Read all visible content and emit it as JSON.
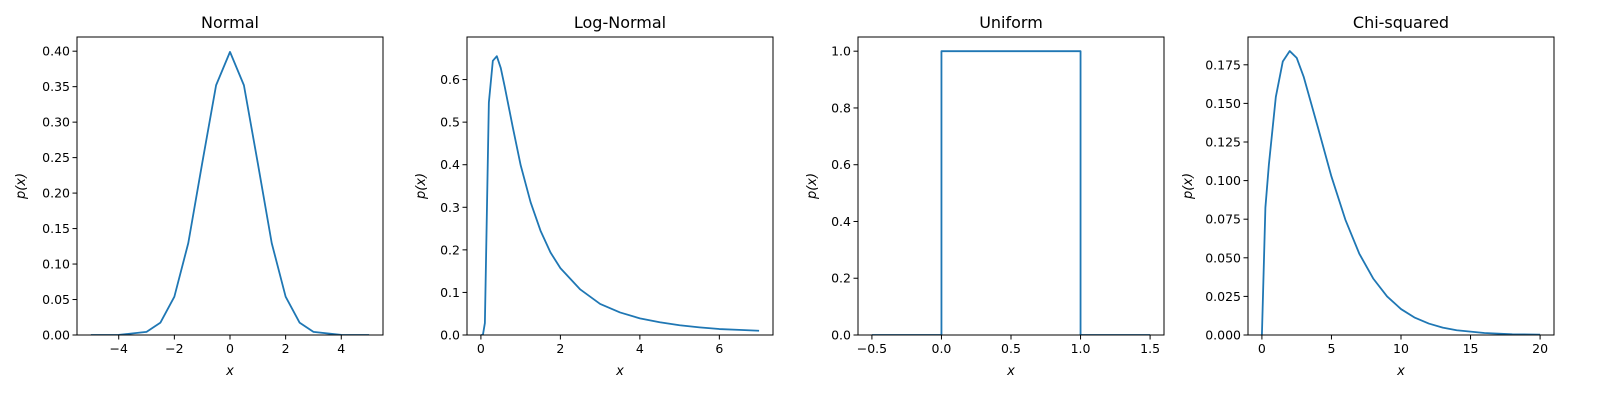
{
  "chart_data": [
    {
      "type": "line",
      "title": "Normal",
      "xlabel": "x",
      "ylabel": "p(x)",
      "xlim": [
        -5.5,
        5.5
      ],
      "ylim": [
        0,
        0.42
      ],
      "xticks": [
        -4,
        -2,
        0,
        2,
        4
      ],
      "xtick_labels": [
        "−4",
        "−2",
        "0",
        "2",
        "4"
      ],
      "yticks": [
        0,
        0.05,
        0.1,
        0.15,
        0.2,
        0.25,
        0.3,
        0.35,
        0.4
      ],
      "ytick_labels": [
        "0.00",
        "0.05",
        "0.10",
        "0.15",
        "0.20",
        "0.25",
        "0.30",
        "0.35",
        "0.40"
      ],
      "series": [
        {
          "color": "#1f77b4",
          "x": [
            -5,
            -4,
            -3,
            -2.5,
            -2,
            -1.5,
            -1,
            -0.5,
            0,
            0.5,
            1,
            1.5,
            2,
            2.5,
            3,
            4,
            5
          ],
          "y": [
            0.0,
            0.0001,
            0.0044,
            0.0175,
            0.054,
            0.1295,
            0.242,
            0.352,
            0.399,
            0.352,
            0.242,
            0.1295,
            0.054,
            0.0175,
            0.0044,
            0.0001,
            0.0
          ]
        }
      ]
    },
    {
      "type": "line",
      "title": "Log-Normal",
      "xlabel": "x",
      "ylabel": "p(x)",
      "xlim": [
        -0.35,
        7.35
      ],
      "ylim": [
        0,
        0.7
      ],
      "xticks": [
        0,
        2,
        4,
        6
      ],
      "xtick_labels": [
        "0",
        "2",
        "4",
        "6"
      ],
      "yticks": [
        0,
        0.1,
        0.2,
        0.3,
        0.4,
        0.5,
        0.6
      ],
      "ytick_labels": [
        "0.0",
        "0.1",
        "0.2",
        "0.3",
        "0.4",
        "0.5",
        "0.6"
      ],
      "series": [
        {
          "color": "#1f77b4",
          "x": [
            0,
            0.05,
            0.1,
            0.2,
            0.3,
            0.4,
            0.5,
            0.6,
            0.8,
            1.0,
            1.25,
            1.5,
            1.75,
            2.0,
            2.5,
            3.0,
            3.5,
            4.0,
            4.5,
            5.0,
            5.5,
            6.0,
            6.5,
            7.0
          ],
          "y": [
            0.0,
            0.0,
            0.028,
            0.546,
            0.644,
            0.655,
            0.627,
            0.583,
            0.489,
            0.399,
            0.312,
            0.245,
            0.194,
            0.157,
            0.107,
            0.073,
            0.053,
            0.039,
            0.03,
            0.023,
            0.018,
            0.014,
            0.012,
            0.01
          ]
        }
      ]
    },
    {
      "type": "line",
      "title": "Uniform",
      "xlabel": "x",
      "ylabel": "p(x)",
      "xlim": [
        -0.6,
        1.6
      ],
      "ylim": [
        0,
        1.05
      ],
      "xticks": [
        -0.5,
        0,
        0.5,
        1,
        1.5
      ],
      "xtick_labels": [
        "−0.5",
        "0.0",
        "0.5",
        "1.0",
        "1.5"
      ],
      "yticks": [
        0,
        0.2,
        0.4,
        0.6,
        0.8,
        1.0
      ],
      "ytick_labels": [
        "0.0",
        "0.2",
        "0.4",
        "0.6",
        "0.8",
        "1.0"
      ],
      "series": [
        {
          "color": "#1f77b4",
          "x": [
            -0.5,
            0,
            0,
            1,
            1,
            1.5
          ],
          "y": [
            0,
            0,
            1,
            1,
            0,
            0
          ]
        }
      ]
    },
    {
      "type": "line",
      "title": "Chi-squared",
      "xlabel": "x",
      "ylabel": "p(x)",
      "xlim": [
        -1,
        21
      ],
      "ylim": [
        0,
        0.193
      ],
      "xticks": [
        0,
        5,
        10,
        15,
        20
      ],
      "xtick_labels": [
        "0",
        "5",
        "10",
        "15",
        "20"
      ],
      "yticks": [
        0,
        0.025,
        0.05,
        0.075,
        0.1,
        0.125,
        0.15,
        0.175
      ],
      "ytick_labels": [
        "0.000",
        "0.025",
        "0.050",
        "0.075",
        "0.100",
        "0.125",
        "0.150",
        "0.175"
      ],
      "series": [
        {
          "color": "#1f77b4",
          "x": [
            0,
            0.25,
            0.5,
            1,
            1.5,
            2,
            2.5,
            3,
            4,
            5,
            6,
            7,
            8,
            9,
            10,
            11,
            12,
            13,
            14,
            16,
            18,
            20
          ],
          "y": [
            0.0,
            0.0825,
            0.1102,
            0.1542,
            0.1771,
            0.1839,
            0.1795,
            0.1673,
            0.1353,
            0.1026,
            0.0747,
            0.0527,
            0.0366,
            0.025,
            0.0168,
            0.0112,
            0.0074,
            0.0048,
            0.0031,
            0.0013,
            0.0005,
            0.0002
          ]
        }
      ]
    }
  ]
}
